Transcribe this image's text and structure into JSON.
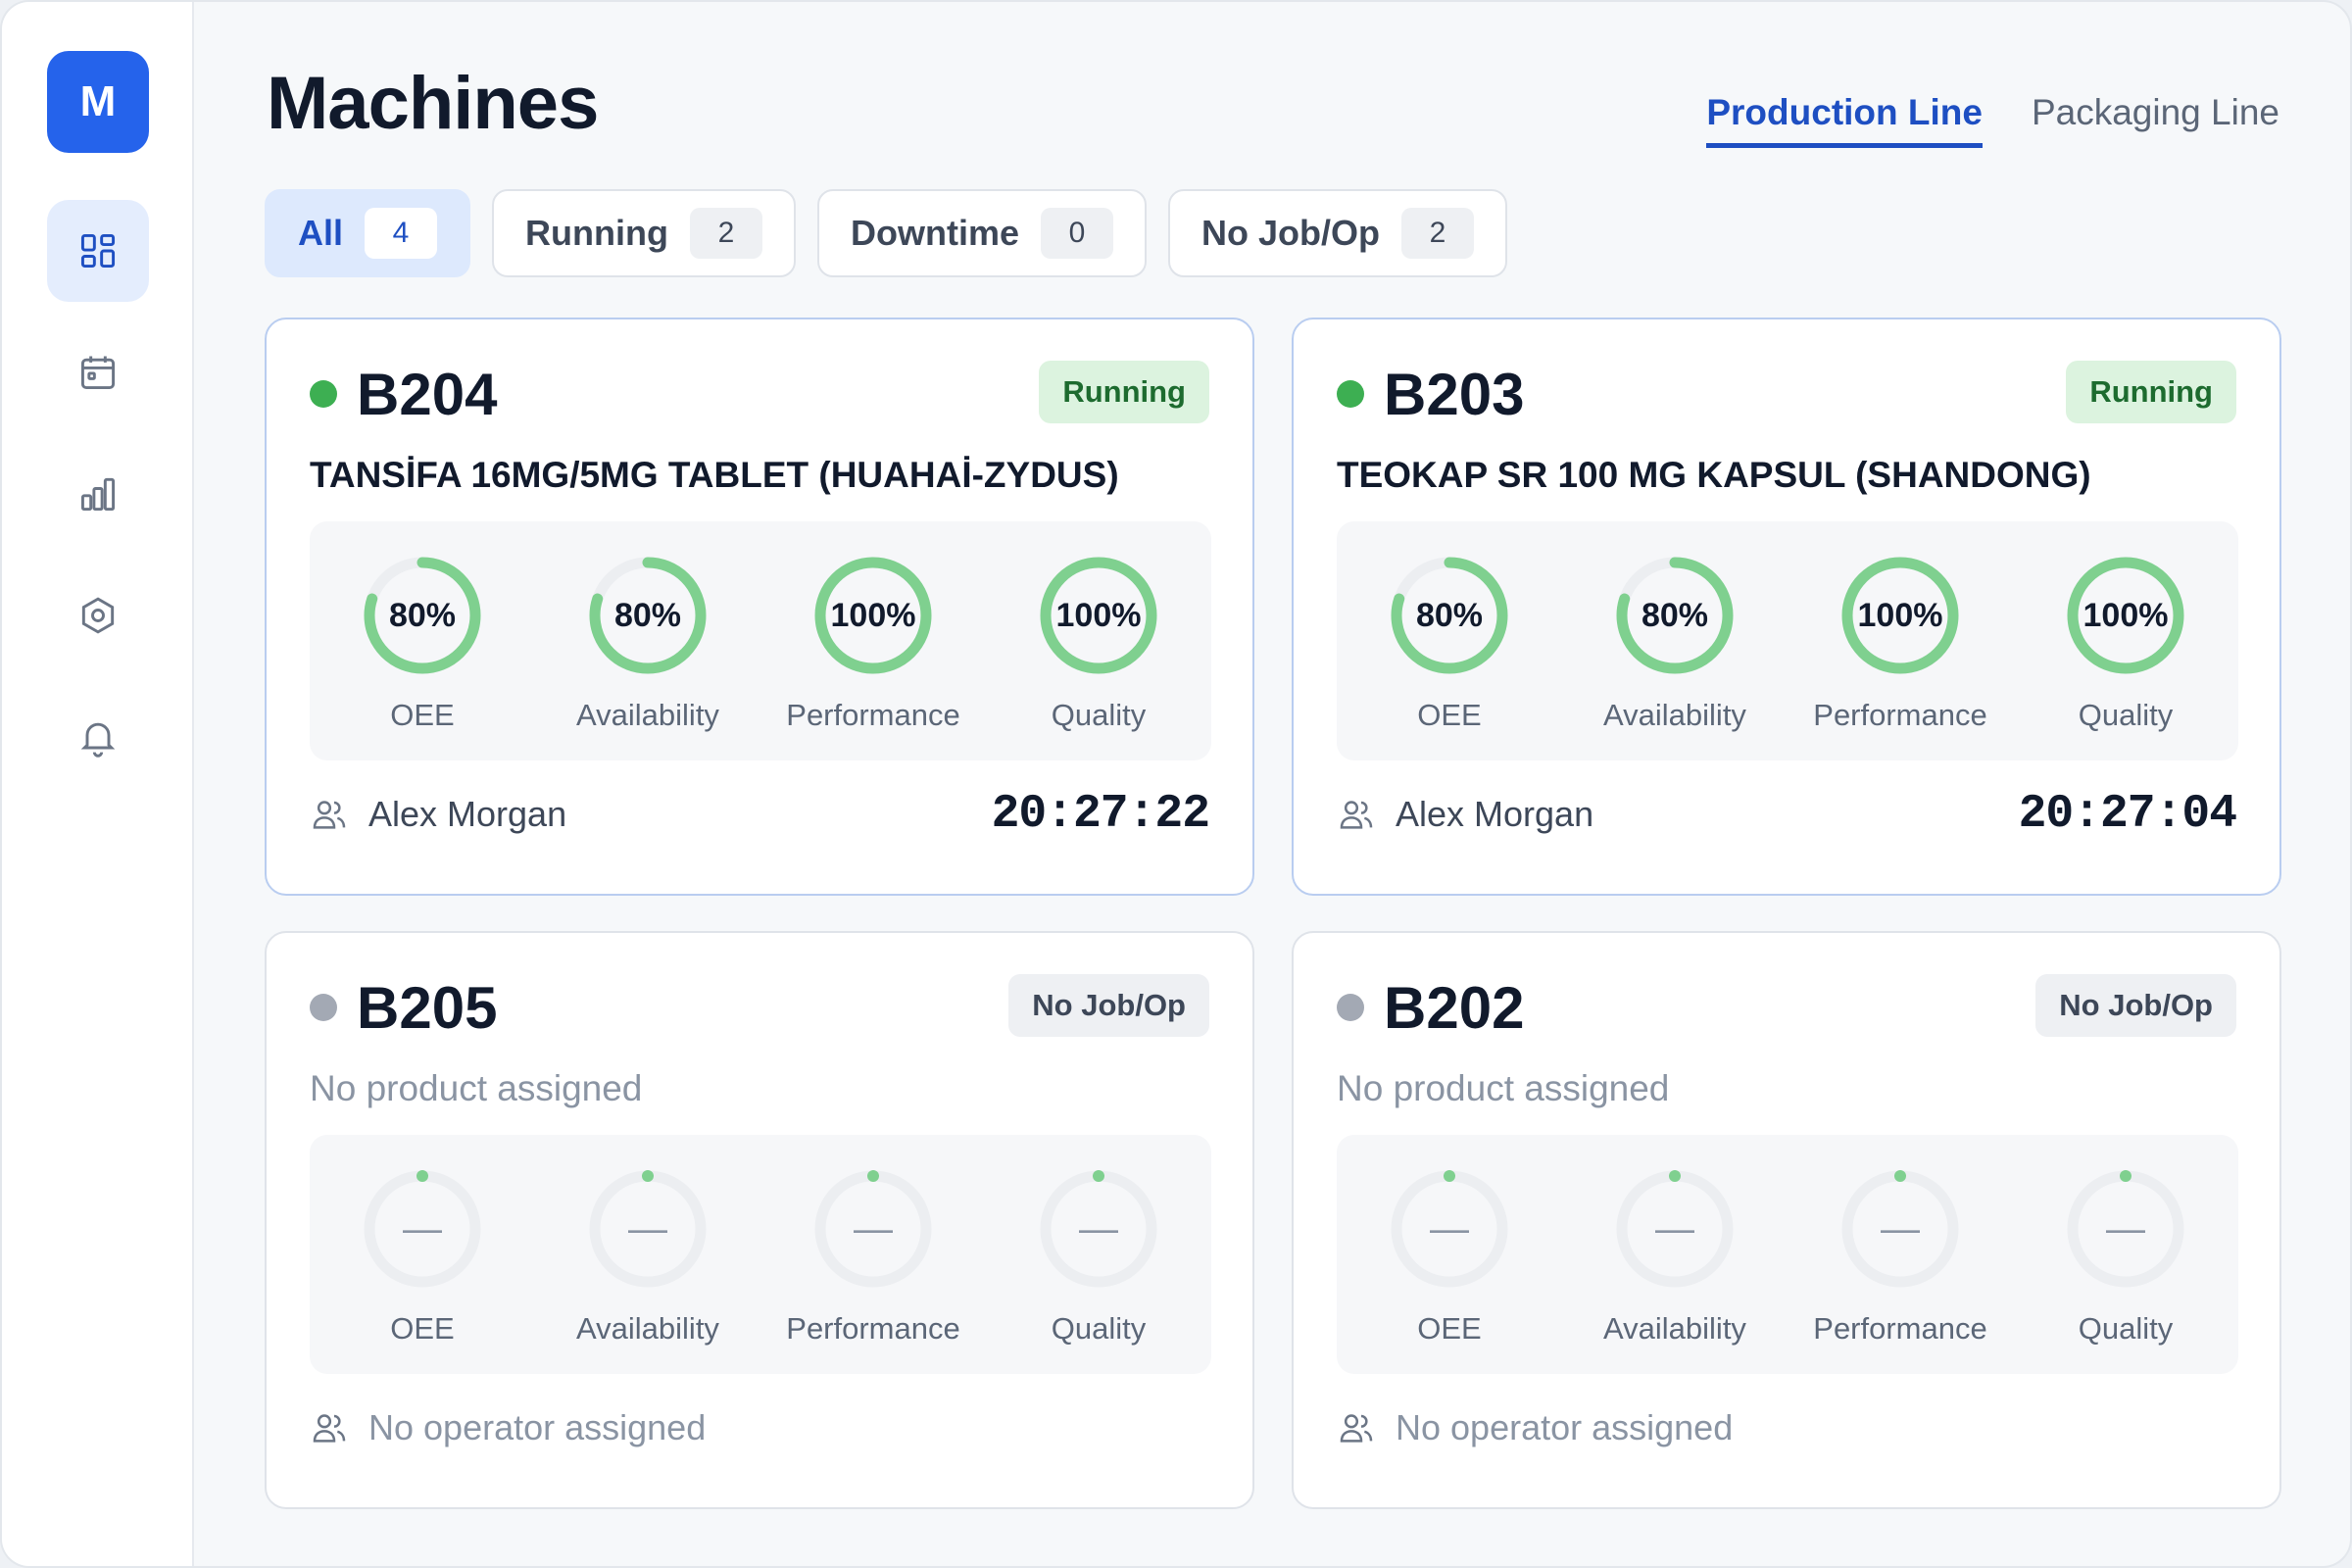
{
  "sidebar": {
    "logo_letter": "M",
    "nav": [
      {
        "icon": "dashboard-icon",
        "active": true
      },
      {
        "icon": "calendar-icon",
        "active": false
      },
      {
        "icon": "bar-chart-icon",
        "active": false
      },
      {
        "icon": "settings-hex-icon",
        "active": false
      },
      {
        "icon": "bell-icon",
        "active": false
      }
    ]
  },
  "header": {
    "title": "Machines",
    "line_tabs": [
      {
        "label": "Production Line",
        "active": true
      },
      {
        "label": "Packaging Line",
        "active": false
      }
    ]
  },
  "filters": [
    {
      "label": "All",
      "count": "4",
      "active": true
    },
    {
      "label": "Running",
      "count": "2",
      "active": false
    },
    {
      "label": "Downtime",
      "count": "0",
      "active": false
    },
    {
      "label": "No Job/Op",
      "count": "2",
      "active": false
    }
  ],
  "colors": {
    "accent": "#1e4fc2",
    "running": "#3daf52",
    "idle": "#a3a9b4",
    "gauge_fill": "#7fd08f",
    "gauge_track": "#eceef1"
  },
  "machines": [
    {
      "name": "B204",
      "status": "running",
      "status_label": "Running",
      "product": "TANSİFA 16MG/5MG TABLET (HUAHAİ-ZYDUS)",
      "metrics": [
        {
          "label": "OEE",
          "display": "80%",
          "value": 80
        },
        {
          "label": "Availability",
          "display": "80%",
          "value": 80
        },
        {
          "label": "Performance",
          "display": "100%",
          "value": 100
        },
        {
          "label": "Quality",
          "display": "100%",
          "value": 100
        }
      ],
      "operator": "Alex Morgan",
      "timer": "20:27:22"
    },
    {
      "name": "B203",
      "status": "running",
      "status_label": "Running",
      "product": "TEOKAP SR 100 MG KAPSUL (SHANDONG)",
      "metrics": [
        {
          "label": "OEE",
          "display": "80%",
          "value": 80
        },
        {
          "label": "Availability",
          "display": "80%",
          "value": 80
        },
        {
          "label": "Performance",
          "display": "100%",
          "value": 100
        },
        {
          "label": "Quality",
          "display": "100%",
          "value": 100
        }
      ],
      "operator": "Alex Morgan",
      "timer": "20:27:04"
    },
    {
      "name": "B205",
      "status": "idle",
      "status_label": "No Job/Op",
      "product": "No product assigned",
      "metrics": [
        {
          "label": "OEE",
          "display": "—",
          "value": null
        },
        {
          "label": "Availability",
          "display": "—",
          "value": null
        },
        {
          "label": "Performance",
          "display": "—",
          "value": null
        },
        {
          "label": "Quality",
          "display": "—",
          "value": null
        }
      ],
      "operator": "No operator assigned",
      "timer": ""
    },
    {
      "name": "B202",
      "status": "idle",
      "status_label": "No Job/Op",
      "product": "No product assigned",
      "metrics": [
        {
          "label": "OEE",
          "display": "—",
          "value": null
        },
        {
          "label": "Availability",
          "display": "—",
          "value": null
        },
        {
          "label": "Performance",
          "display": "—",
          "value": null
        },
        {
          "label": "Quality",
          "display": "—",
          "value": null
        }
      ],
      "operator": "No operator assigned",
      "timer": ""
    }
  ]
}
